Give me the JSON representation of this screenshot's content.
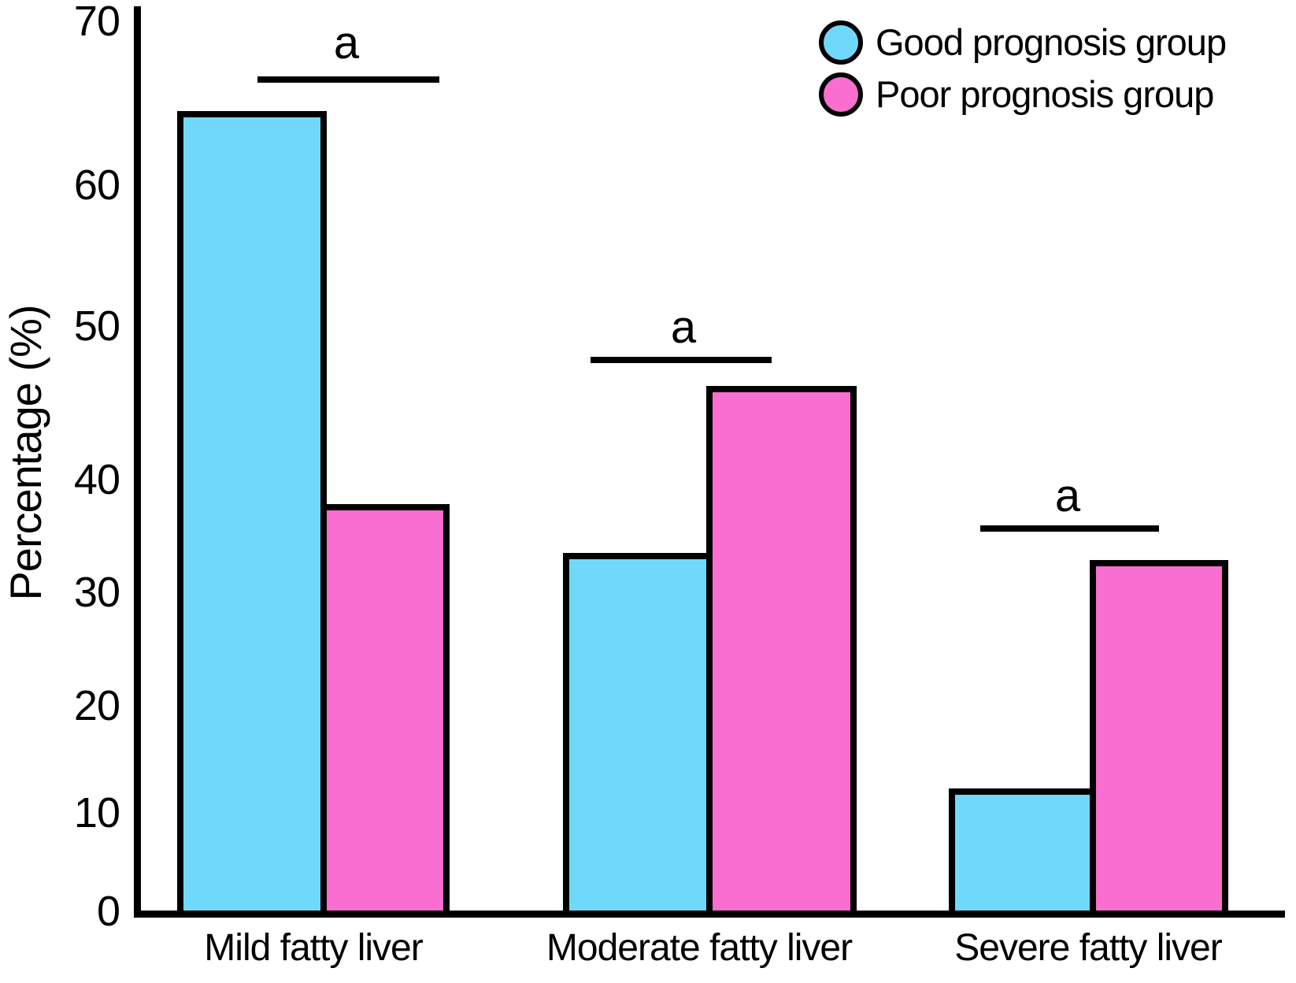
{
  "chart_data": {
    "type": "bar",
    "title": "",
    "xlabel": "",
    "ylabel": "Percentage (%)",
    "ylim": [
      0,
      70
    ],
    "y_ticks": [
      0,
      10,
      20,
      30,
      40,
      50,
      60,
      70
    ],
    "grid": false,
    "legend_position": "top-right",
    "categories": [
      "Mild fatty liver",
      "Moderate fatty liver",
      "Severe fatty liver"
    ],
    "series": [
      {
        "name": "Good prognosis group",
        "color": "#70D8FA",
        "outline_color": "#000000",
        "values": [
          64.5,
          33.5,
          12.3
        ]
      },
      {
        "name": "Poor prognosis group",
        "color": "#FA6ECF",
        "outline_color": "#000000",
        "values": [
          37.8,
          46.1,
          32.9
        ]
      }
    ],
    "significance_markers": [
      {
        "category": "Mild fatty liver",
        "label": "a"
      },
      {
        "category": "Moderate fatty liver",
        "label": "a"
      },
      {
        "category": "Severe fatty liver",
        "label": "a"
      }
    ]
  }
}
